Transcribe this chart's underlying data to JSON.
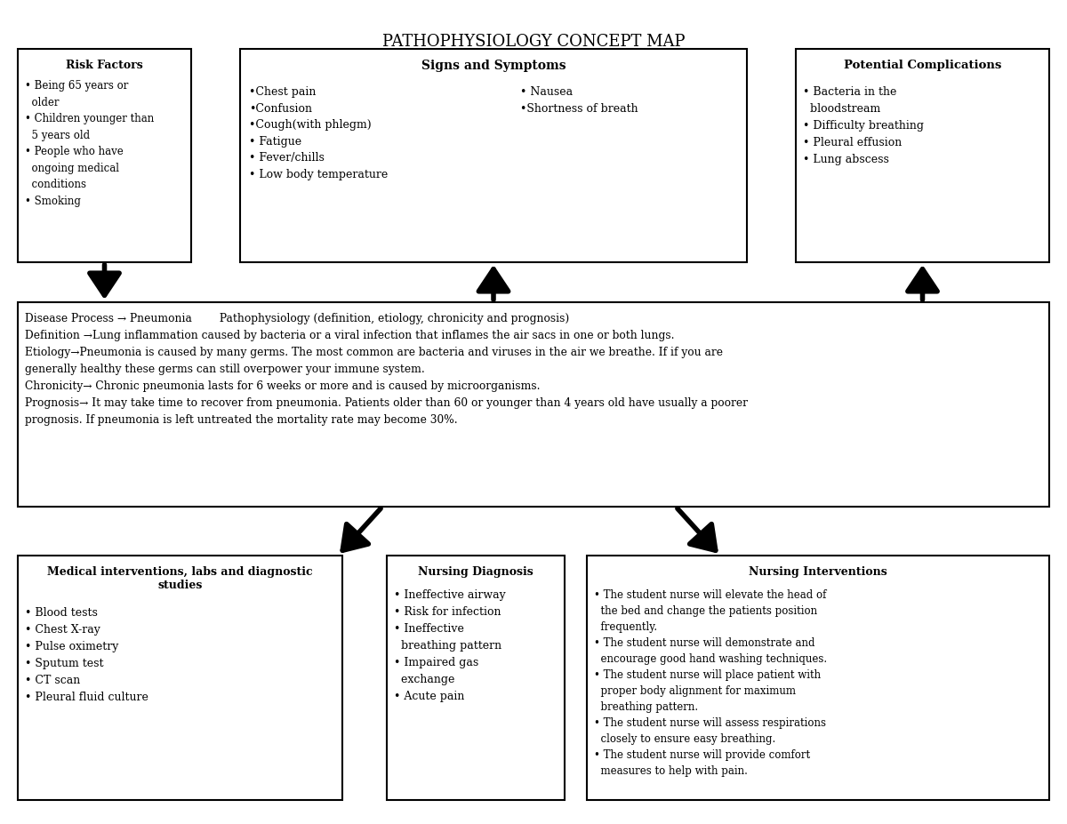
{
  "title": "PATHOPHYSIOLOGY CONCEPT MAP",
  "bg_color": "#ffffff",
  "text_color": "#000000",
  "box_edge_color": "#000000",
  "risk_factors_title": "Risk Factors",
  "risk_factors_items": "• Being 65 years or\n  older\n• Children younger than\n  5 years old\n• People who have\n  ongoing medical\n  conditions\n• Smoking",
  "signs_symptoms_title": "Signs and Symptoms",
  "signs_symptoms_left": "•Chest pain\n•Confusion\n•Cough(with phlegm)\n• Fatigue\n• Fever/chills\n• Low body temperature",
  "signs_symptoms_right": "• Nausea\n•Shortness of breath",
  "complications_title": "Potential Complications",
  "complications_items": "• Bacteria in the\n  bloodstream\n• Difficulty breathing\n• Pleural effusion\n• Lung abscess",
  "path_text": "Disease Process → Pneumonia        Pathophysiology (definition, etiology, chronicity and prognosis)\nDefinition →Lung inflammation caused by bacteria or a viral infection that inflames the air sacs in one or both lungs.\nEtiology→Pneumonia is caused by many germs. The most common are bacteria and viruses in the air we breathe. If if you are\ngenerally healthy these germs can still overpower your immune system.\nChronicity→ Chronic pneumonia lasts for 6 weeks or more and is caused by microorganisms.\nPrognosis→ It may take time to recover from pneumonia. Patients older than 60 or younger than 4 years old have usually a poorer\nprognosis. If pneumonia is left untreated the mortality rate may become 30%.",
  "medical_title": "Medical interventions, labs and diagnostic\nstudies",
  "medical_items": "• Blood tests\n• Chest X-ray\n• Pulse oximetry\n• Sputum test\n• CT scan\n• Pleural fluid culture",
  "nursing_dx_title": "Nursing Diagnosis",
  "nursing_dx_items": "• Ineffective airway\n• Risk for infection\n• Ineffective\n  breathing pattern\n• Impaired gas\n  exchange\n• Acute pain",
  "nursing_int_title": "Nursing Interventions",
  "nursing_int_items": "• The student nurse will elevate the head of\n  the bed and change the patients position\n  frequently.\n• The student nurse will demonstrate and\n  encourage good hand washing techniques.\n• The student nurse will place patient with\n  proper body alignment for maximum\n  breathing pattern.\n• The student nurse will assess respirations\n  closely to ensure easy breathing.\n• The student nurse will provide comfort\n  measures to help with pain."
}
